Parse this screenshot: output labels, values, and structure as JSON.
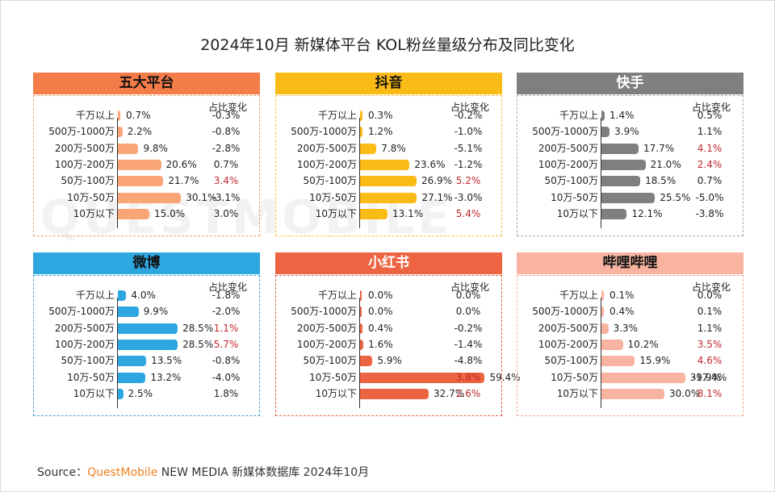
{
  "title": "2024年10月 新媒体平台 KOL粉丝量级分布及同比变化",
  "watermark": "QUESTMOBILE",
  "change_header": "占比变化",
  "source": {
    "prefix": "Source：",
    "brand": "QuestMobile",
    "rest": " NEW MEDIA 新媒体数据库 2024年10月"
  },
  "colors": {
    "up": "#c0272d"
  },
  "chart_data": [
    {
      "type": "bar",
      "title": "五大平台",
      "color": "#f47c48",
      "bar_color": "#f9a577",
      "header_color": "#f47c48",
      "categories": [
        "千万以上",
        "500万-1000万",
        "200万-500万",
        "100万-200万",
        "50万-100万",
        "10万-50万",
        "10万以下"
      ],
      "values": [
        0.7,
        2.2,
        9.8,
        20.6,
        21.7,
        30.1,
        15.0
      ],
      "value_labels": [
        "0.7%",
        "2.2%",
        "9.8%",
        "20.6%",
        "21.7%",
        "30.1%",
        "15.0%"
      ],
      "changes": [
        "-0.3%",
        "-0.8%",
        "-2.8%",
        "0.7%",
        "3.4%",
        "-3.1%",
        "3.0%"
      ],
      "changes_up": [
        false,
        false,
        false,
        false,
        true,
        false,
        false
      ]
    },
    {
      "type": "bar",
      "title": "抖音",
      "color": "#fbbb17",
      "bar_color": "#fbbb17",
      "header_color": "#fbbb17",
      "categories": [
        "千万以上",
        "500万-1000万",
        "200万-500万",
        "100万-200万",
        "50万-100万",
        "10万-50万",
        "10万以下"
      ],
      "values": [
        0.3,
        1.2,
        7.8,
        23.6,
        26.9,
        27.1,
        13.1
      ],
      "value_labels": [
        "0.3%",
        "1.2%",
        "7.8%",
        "23.6%",
        "26.9%",
        "27.1%",
        "13.1%"
      ],
      "changes": [
        "-0.2%",
        "-1.0%",
        "-5.1%",
        "-1.2%",
        "5.2%",
        "-3.0%",
        "5.4%"
      ],
      "changes_up": [
        false,
        false,
        false,
        false,
        true,
        false,
        true
      ]
    },
    {
      "type": "bar",
      "title": "快手",
      "color": "#7f7f7f",
      "bar_color": "#7f7f7f",
      "header_color": "#7f7f7f",
      "categories": [
        "千万以上",
        "500万-1000万",
        "200万-500万",
        "100万-200万",
        "50万-100万",
        "10万-50万",
        "10万以下"
      ],
      "values": [
        1.4,
        3.9,
        17.7,
        21.0,
        18.5,
        25.5,
        12.1
      ],
      "value_labels": [
        "1.4%",
        "3.9%",
        "17.7%",
        "21.0%",
        "18.5%",
        "25.5%",
        "12.1%"
      ],
      "changes": [
        "0.5%",
        "1.1%",
        "4.1%",
        "2.4%",
        "0.7%",
        "-5.0%",
        "-3.8%"
      ],
      "changes_up": [
        false,
        false,
        true,
        true,
        false,
        false,
        false
      ]
    },
    {
      "type": "bar",
      "title": "微博",
      "color": "#2ea7e0",
      "bar_color": "#2ea7e0",
      "header_color": "#2ea7e0",
      "categories": [
        "千万以上",
        "500万-1000万",
        "200万-500万",
        "100万-200万",
        "50万-100万",
        "10万-50万",
        "10万以下"
      ],
      "values": [
        4.0,
        9.9,
        28.5,
        28.5,
        13.5,
        13.2,
        2.5
      ],
      "value_labels": [
        "4.0%",
        "9.9%",
        "28.5%",
        "28.5%",
        "13.5%",
        "13.2%",
        "2.5%"
      ],
      "changes": [
        "-1.8%",
        "-2.0%",
        "1.1%",
        "5.7%",
        "-0.8%",
        "-4.0%",
        "1.8%"
      ],
      "changes_up": [
        false,
        false,
        true,
        true,
        false,
        false,
        false
      ]
    },
    {
      "type": "bar",
      "title": "小红书",
      "color": "#ec6441",
      "bar_color": "#ec6441",
      "header_color": "#ec6441",
      "categories": [
        "千万以上",
        "500万-1000万",
        "200万-500万",
        "100万-200万",
        "50万-100万",
        "10万-50万",
        "10万以下"
      ],
      "values": [
        0.0,
        0.0,
        0.4,
        1.6,
        5.9,
        59.4,
        32.7
      ],
      "value_labels": [
        "0.0%",
        "0.0%",
        "0.4%",
        "1.6%",
        "5.9%",
        "59.4%",
        "32.7%"
      ],
      "changes": [
        "0.0%",
        "0.0%",
        "-0.2%",
        "-1.4%",
        "-4.8%",
        "3.8%",
        "2.6%"
      ],
      "changes_up": [
        false,
        false,
        false,
        false,
        false,
        true,
        true
      ]
    },
    {
      "type": "bar",
      "title": "哔哩哔哩",
      "color": "#f8b4a0",
      "bar_color": "#f8b4a0",
      "header_color": "#f8b4a0",
      "categories": [
        "千万以上",
        "500万-1000万",
        "200万-500万",
        "100万-200万",
        "50万-100万",
        "10万-50万",
        "10万以下"
      ],
      "values": [
        0.1,
        0.4,
        3.3,
        10.2,
        15.9,
        39.9,
        30.0
      ],
      "value_labels": [
        "0.1%",
        "0.4%",
        "3.3%",
        "10.2%",
        "15.9%",
        "39.9%",
        "30.0%"
      ],
      "changes": [
        "0.0%",
        "0.1%",
        "1.1%",
        "3.5%",
        "4.6%",
        "-17.4%",
        "8.1%"
      ],
      "changes_up": [
        false,
        false,
        false,
        true,
        true,
        false,
        true
      ]
    }
  ]
}
